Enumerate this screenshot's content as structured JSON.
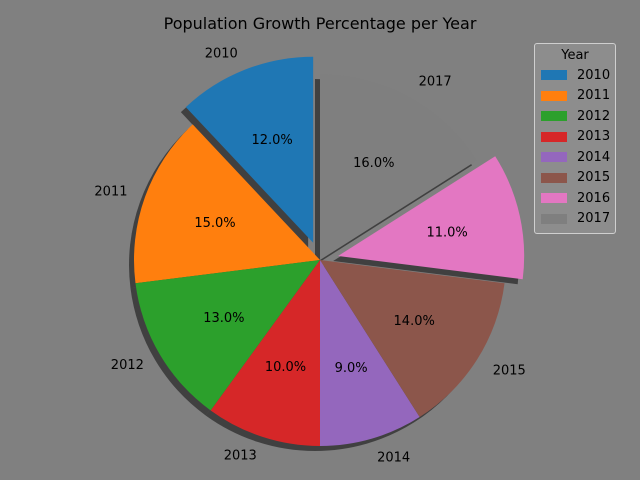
{
  "chart_data": {
    "type": "pie",
    "title": "Population Growth Percentage per Year",
    "categories": [
      "2010",
      "2011",
      "2012",
      "2013",
      "2014",
      "2015",
      "2016",
      "2017"
    ],
    "values": [
      12.0,
      15.0,
      13.0,
      10.0,
      9.0,
      14.0,
      11.0,
      16.0
    ],
    "value_labels": [
      "12.0%",
      "15.0%",
      "13.0%",
      "10.0%",
      "9.0%",
      "14.0%",
      "11.0%",
      "16.0%"
    ],
    "colors": [
      "#1f77b4",
      "#ff7f0e",
      "#2ca02c",
      "#d62728",
      "#9467bd",
      "#8c564b",
      "#e377c2",
      "#7f7f7f"
    ],
    "exploded": [
      "2010",
      "2016"
    ],
    "shadow": true,
    "legend": {
      "title": "Year",
      "placement": "top-right"
    }
  }
}
